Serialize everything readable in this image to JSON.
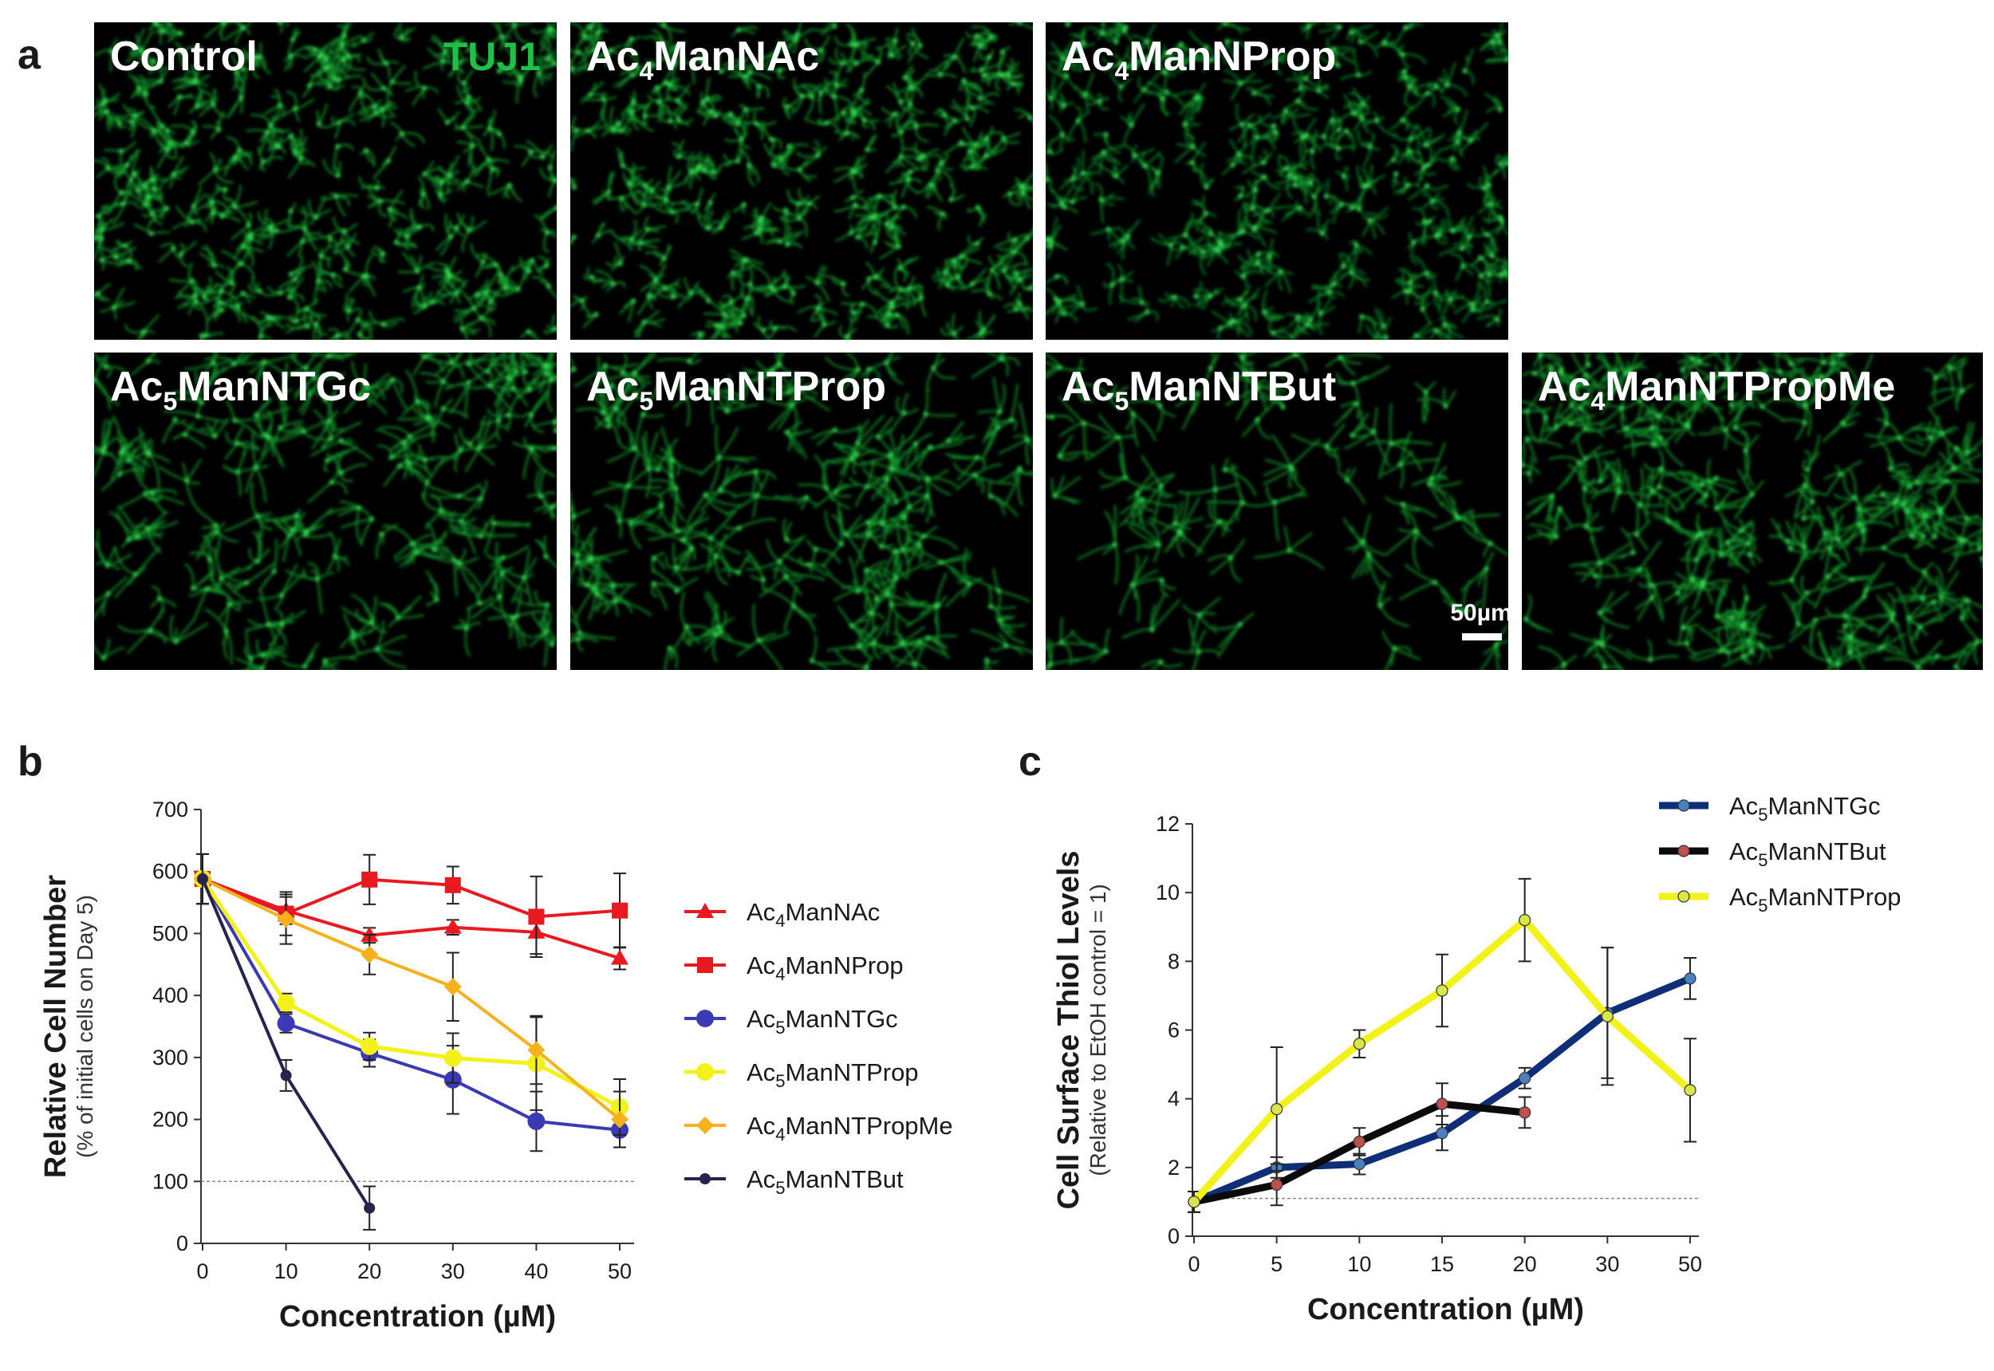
{
  "panels": {
    "a": {
      "letter": "a",
      "stain": "TUJ1",
      "scale_bar": "50µm",
      "images": [
        {
          "id": "control",
          "parts": [
            "Control"
          ],
          "density": 0.95,
          "spread": 0.6,
          "tint": "#18c93a"
        },
        {
          "id": "ac4mannac",
          "parts": [
            "Ac",
            "4",
            "ManNAc"
          ],
          "density": 1.0,
          "spread": 0.55,
          "tint": "#18c93a"
        },
        {
          "id": "ac4mannprop",
          "parts": [
            "Ac",
            "4",
            "ManNProp"
          ],
          "density": 0.9,
          "spread": 0.6,
          "tint": "#16b835"
        },
        {
          "id": "ac5manntgc",
          "parts": [
            "Ac",
            "5",
            "ManNTGc"
          ],
          "density": 0.6,
          "spread": 0.9,
          "tint": "#18c93a"
        },
        {
          "id": "ac5manntprop",
          "parts": [
            "Ac",
            "5",
            "ManNTProp"
          ],
          "density": 0.55,
          "spread": 0.95,
          "tint": "#18c93a"
        },
        {
          "id": "ac5manntbut",
          "parts": [
            "Ac",
            "5",
            "ManNTBut"
          ],
          "density": 0.28,
          "spread": 1.0,
          "tint": "#18c93a"
        },
        {
          "id": "ac4manntpropme",
          "parts": [
            "Ac",
            "4",
            "ManNTPropMe"
          ],
          "density": 0.75,
          "spread": 0.9,
          "tint": "#18c93a"
        }
      ]
    },
    "b": {
      "letter": "b"
    },
    "c": {
      "letter": "c"
    }
  },
  "chart_data": [
    {
      "id": "b",
      "type": "line",
      "xlabel": "Concentration (µM)",
      "ylabel": "Relative Cell Number",
      "ylabel_sub": "(% of initial cells on Day 5)",
      "x": [
        0,
        10,
        20,
        30,
        40,
        50
      ],
      "xticks": [
        "0",
        "10",
        "20",
        "30",
        "40",
        "50"
      ],
      "ylim": [
        0,
        700
      ],
      "yticks": [
        0,
        100,
        200,
        300,
        400,
        500,
        600,
        700
      ],
      "reference_line": 100,
      "legend_position": "right",
      "series": [
        {
          "name_parts": [
            "Ac",
            "4",
            "ManNAc"
          ],
          "color": "#e8191f",
          "marker": "triangle",
          "line_width": 4,
          "values": [
            588,
            537,
            497,
            510,
            502,
            460
          ],
          "errors": [
            40,
            22,
            12,
            12,
            35,
            18
          ]
        },
        {
          "name_parts": [
            "Ac",
            "4",
            "ManNProp"
          ],
          "color": "#e8191f",
          "marker": "square",
          "line_width": 4,
          "values": [
            588,
            532,
            587,
            578,
            527,
            537
          ],
          "errors": [
            40,
            35,
            40,
            30,
            65,
            60
          ]
        },
        {
          "name_parts": [
            "Ac",
            "5",
            "ManNTGc"
          ],
          "color": "#3c39b4",
          "marker": "circle",
          "line_width": 4,
          "values": [
            588,
            355,
            307,
            264,
            197,
            183
          ],
          "errors": [
            40,
            15,
            22,
            55,
            48,
            28
          ]
        },
        {
          "name_parts": [
            "Ac",
            "5",
            "ManNTProp"
          ],
          "color": "#f2f21a",
          "marker": "circle",
          "line_width": 5,
          "values": [
            588,
            388,
            318,
            299,
            290,
            220
          ],
          "errors": [
            40,
            15,
            22,
            40,
            75,
            45
          ]
        },
        {
          "name_parts": [
            "Ac",
            "4",
            "ManNTPropMe"
          ],
          "color": "#f5b21e",
          "marker": "diamond",
          "line_width": 4,
          "values": [
            588,
            523,
            466,
            414,
            312,
            200
          ],
          "errors": [
            40,
            40,
            32,
            55,
            55,
            45
          ]
        },
        {
          "name_parts": [
            "Ac",
            "5",
            "ManNTBut"
          ],
          "color": "#26234f",
          "marker": "circle-small",
          "line_width": 4,
          "values": [
            588,
            271,
            57,
            null,
            null,
            null
          ],
          "errors": [
            40,
            25,
            35,
            null,
            null,
            null
          ]
        }
      ]
    },
    {
      "id": "c",
      "type": "line",
      "xlabel": "Concentration (µM)",
      "ylabel": "Cell Surface Thiol Levels",
      "ylabel_sub": "(Relative to EtOH control = 1)",
      "x": [
        "0",
        "5",
        "10",
        "15",
        "20",
        "30",
        "50"
      ],
      "xticks": [
        "0",
        "5",
        "10",
        "15",
        "20",
        "30",
        "50"
      ],
      "ylim": [
        0,
        12
      ],
      "yticks": [
        0,
        2,
        4,
        6,
        8,
        10,
        12
      ],
      "reference_line": 1.1,
      "legend_position": "top-right",
      "series": [
        {
          "name_parts": [
            "Ac",
            "5",
            "ManNTGc"
          ],
          "color": "#0f2e78",
          "marker_fill": "#4a7fc0",
          "line_width": 9,
          "values": [
            1.0,
            2.0,
            2.1,
            3.0,
            4.6,
            6.5,
            7.5
          ],
          "errors": [
            0.3,
            0.3,
            0.3,
            0.5,
            0.3,
            1.9,
            0.6
          ]
        },
        {
          "name_parts": [
            "Ac",
            "5",
            "ManNTBut"
          ],
          "color": "#0b0b0b",
          "marker_fill": "#c0504d",
          "line_width": 9,
          "values": [
            1.0,
            1.5,
            2.75,
            3.85,
            3.6,
            null,
            null
          ],
          "errors": [
            0.3,
            0.6,
            0.4,
            0.6,
            0.45,
            null,
            null
          ]
        },
        {
          "name_parts": [
            "Ac",
            "5",
            "ManNTProp"
          ],
          "color": "#f2f21a",
          "marker_fill": "#d9e64a",
          "line_width": 9,
          "values": [
            1.0,
            3.7,
            5.6,
            7.15,
            9.2,
            6.4,
            4.25
          ],
          "errors": [
            0.3,
            1.8,
            0.4,
            1.05,
            1.2,
            2.0,
            1.5
          ]
        }
      ]
    }
  ]
}
